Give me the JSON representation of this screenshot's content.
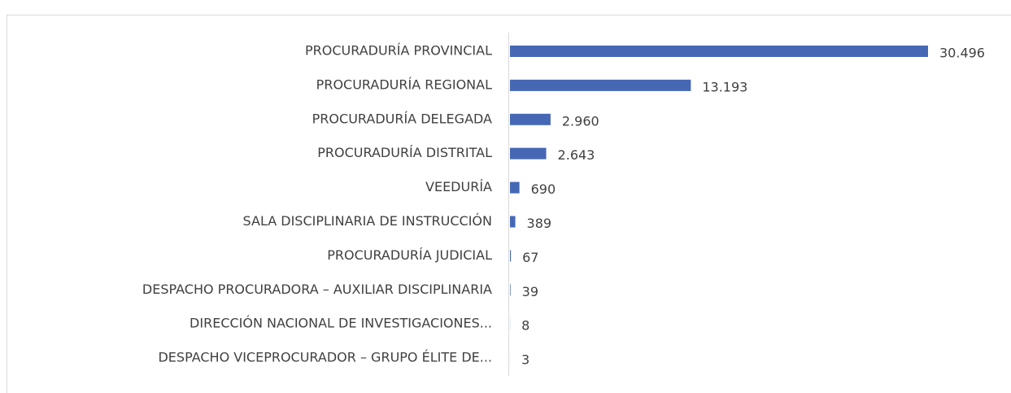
{
  "chart_data": {
    "type": "bar",
    "orientation": "horizontal",
    "color": "#4668b4",
    "categories": [
      "PROCURADURÍA PROVINCIAL",
      "PROCURADURÍA REGIONAL",
      "PROCURADURÍA DELEGADA",
      "PROCURADURÍA DISTRITAL",
      "VEEDURÍA",
      "SALA DISCIPLINARIA DE INSTRUCCIÓN",
      "PROCURADURÍA JUDICIAL",
      "DESPACHO PROCURADORA – AUXILIAR DISCIPLINARIA",
      "DIRECCIÓN NACIONAL DE INVESTIGACIONES...",
      "DESPACHO VICEPROCURADOR – GRUPO ÉLITE DE..."
    ],
    "values": [
      30496,
      13193,
      2960,
      2643,
      690,
      389,
      67,
      39,
      8,
      3
    ],
    "value_labels": [
      "30.496",
      "13.193",
      "2.960",
      "2.643",
      "690",
      "389",
      "67",
      "39",
      "8",
      "3"
    ]
  }
}
